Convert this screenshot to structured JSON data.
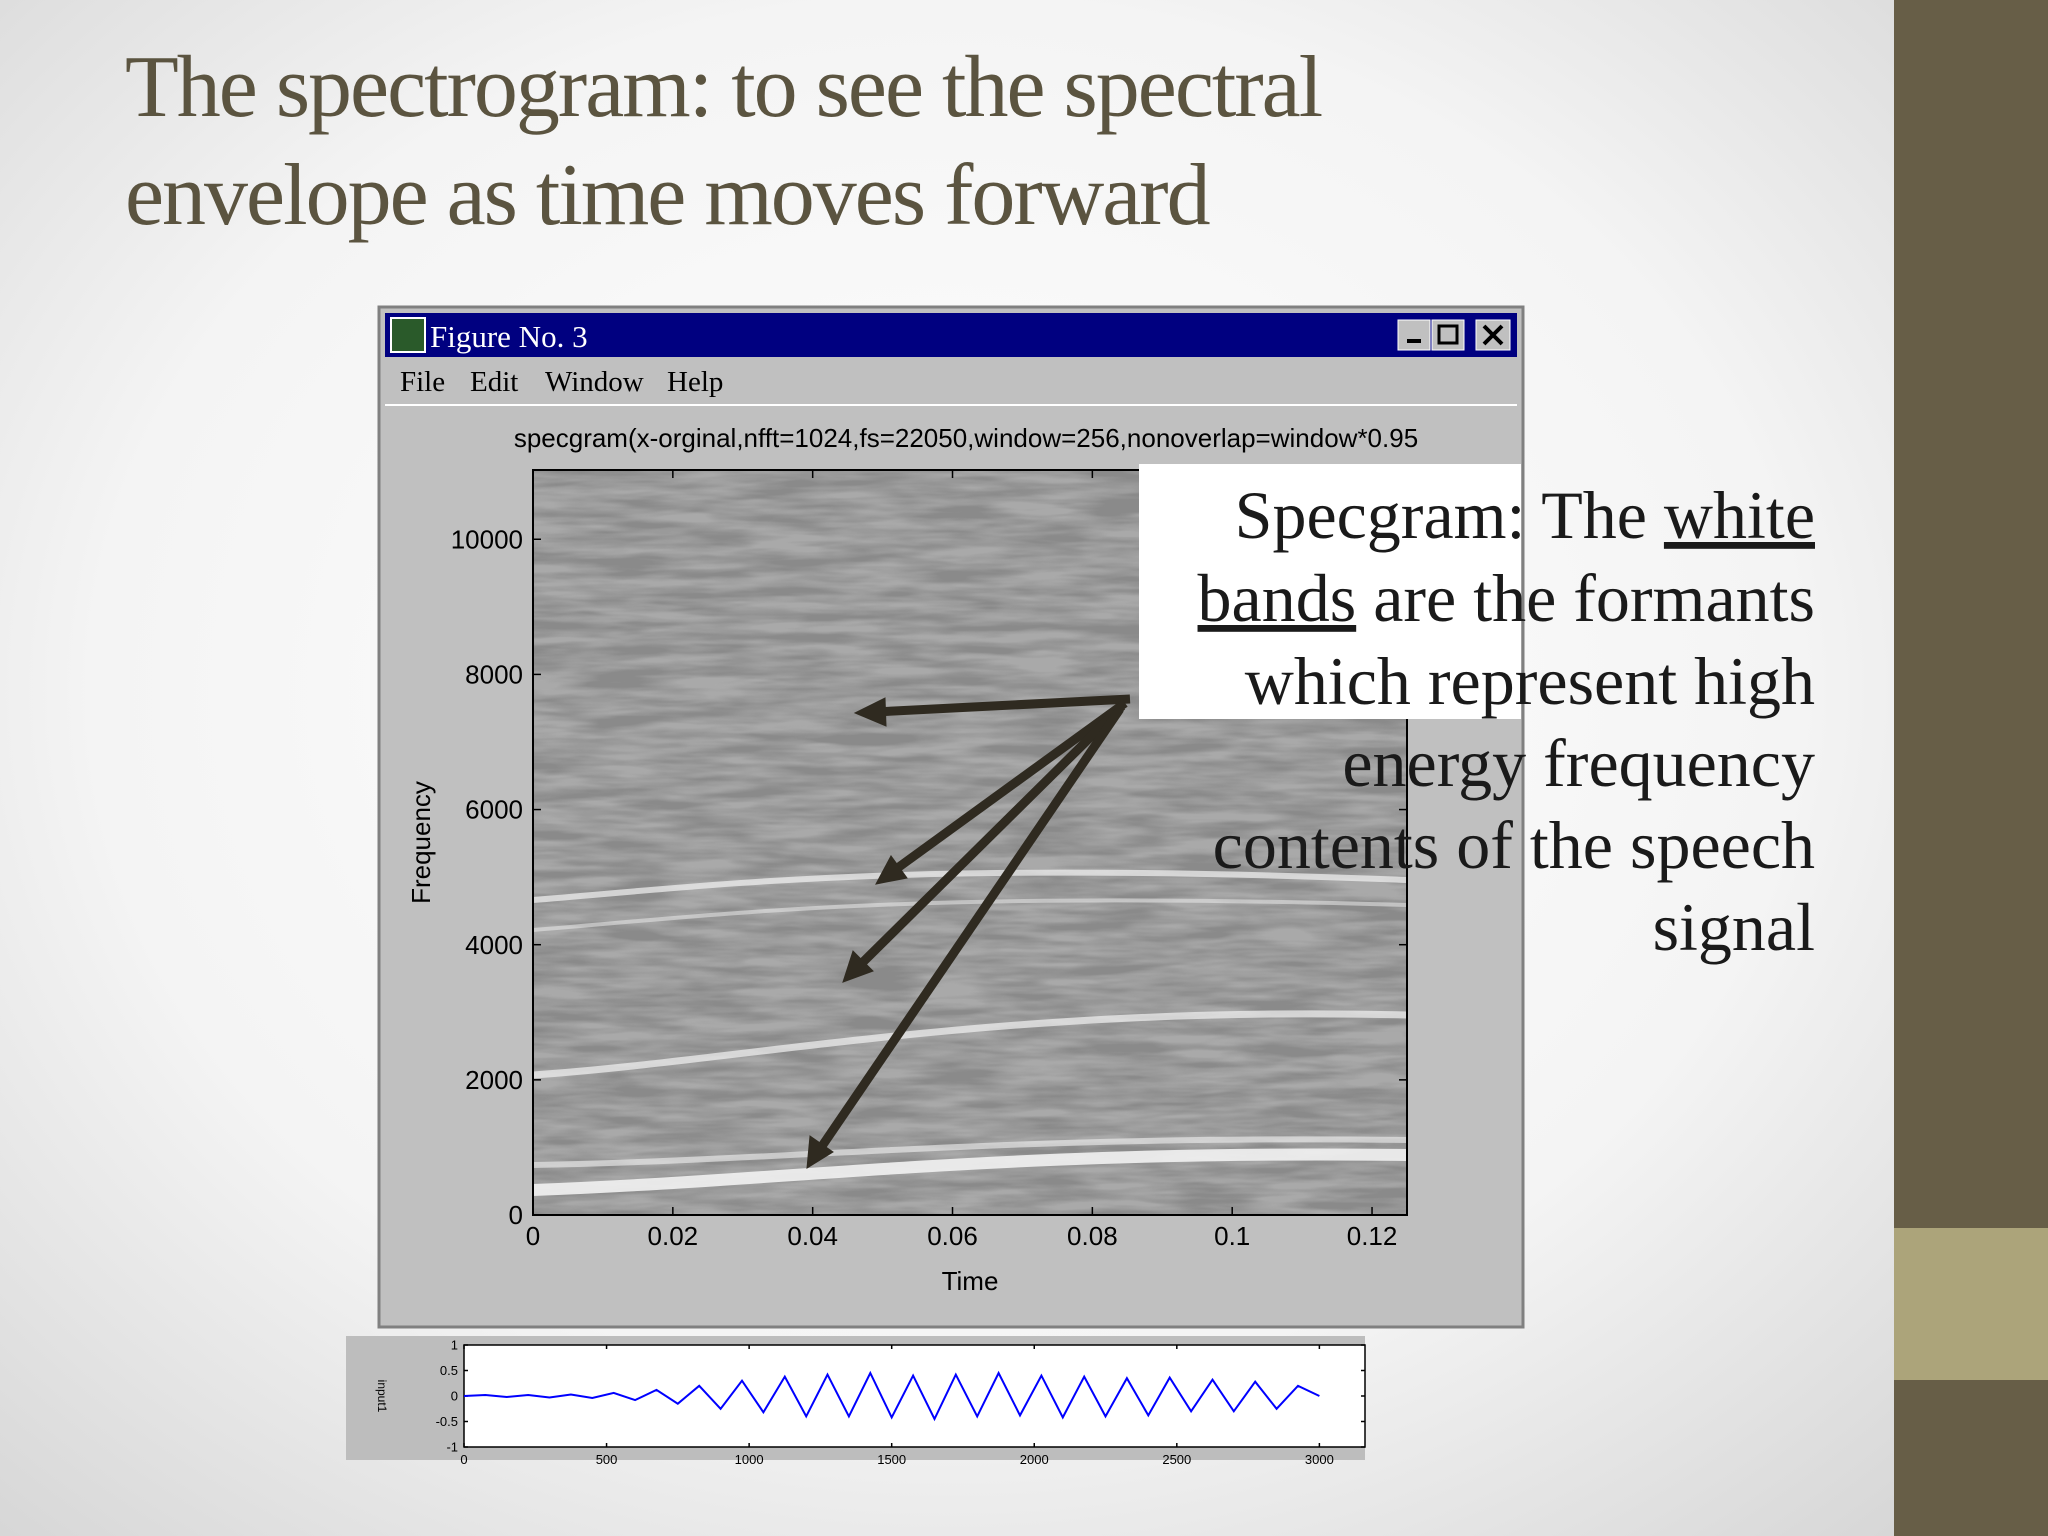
{
  "slide": {
    "title": [
      "The spectrogram: to see the spectral",
      "envelope as time moves forward"
    ],
    "annotation": {
      "lines": [
        [
          "Specgram: The ",
          "white"
        ],
        [
          "bands",
          " are the formants"
        ],
        [
          "which represent high"
        ],
        [
          "energy frequency"
        ],
        [
          "contents of the speech"
        ],
        [
          "signal"
        ]
      ]
    }
  },
  "window": {
    "title": "Figure No. 3",
    "menu": [
      "File",
      "Edit",
      "Window",
      "Help"
    ]
  },
  "chart_data": [
    {
      "type": "spectrogram",
      "title": "specgram(x-orginal,nfft=1024,fs=22050,window=256,nonoverlap=window*0.95",
      "xlabel": "Time",
      "ylabel": "Frequency",
      "xlim": [
        0,
        0.125
      ],
      "ylim": [
        0,
        11025
      ],
      "xticks": [
        0,
        0.02,
        0.04,
        0.06,
        0.08,
        0.1,
        0.12
      ],
      "yticks": [
        0,
        2000,
        4000,
        6000,
        8000,
        10000
      ]
    },
    {
      "type": "line",
      "ylabel": "input1",
      "color": "#0000ff",
      "x": [
        0,
        75,
        150,
        225,
        300,
        375,
        450,
        525,
        600,
        675,
        750,
        825,
        900,
        975,
        1050,
        1125,
        1200,
        1275,
        1350,
        1425,
        1500,
        1575,
        1650,
        1725,
        1800,
        1875,
        1950,
        2025,
        2100,
        2175,
        2250,
        2325,
        2400,
        2475,
        2550,
        2625,
        2700,
        2775,
        2850,
        2925,
        3000
      ],
      "values": [
        0,
        0.02,
        -0.02,
        0.02,
        -0.03,
        0.03,
        -0.04,
        0.06,
        -0.08,
        0.12,
        -0.15,
        0.2,
        -0.25,
        0.3,
        -0.32,
        0.38,
        -0.4,
        0.42,
        -0.4,
        0.45,
        -0.42,
        0.4,
        -0.45,
        0.42,
        -0.4,
        0.45,
        -0.38,
        0.4,
        -0.42,
        0.38,
        -0.4,
        0.35,
        -0.38,
        0.36,
        -0.3,
        0.32,
        -0.3,
        0.28,
        -0.25,
        0.2,
        0
      ],
      "xlim": [
        0,
        3160
      ],
      "ylim": [
        -1,
        1
      ],
      "xticks": [
        0,
        500,
        1000,
        1500,
        2000,
        2500,
        3000
      ],
      "yticks": [
        -1,
        -0.5,
        0,
        0.5,
        1
      ]
    }
  ]
}
